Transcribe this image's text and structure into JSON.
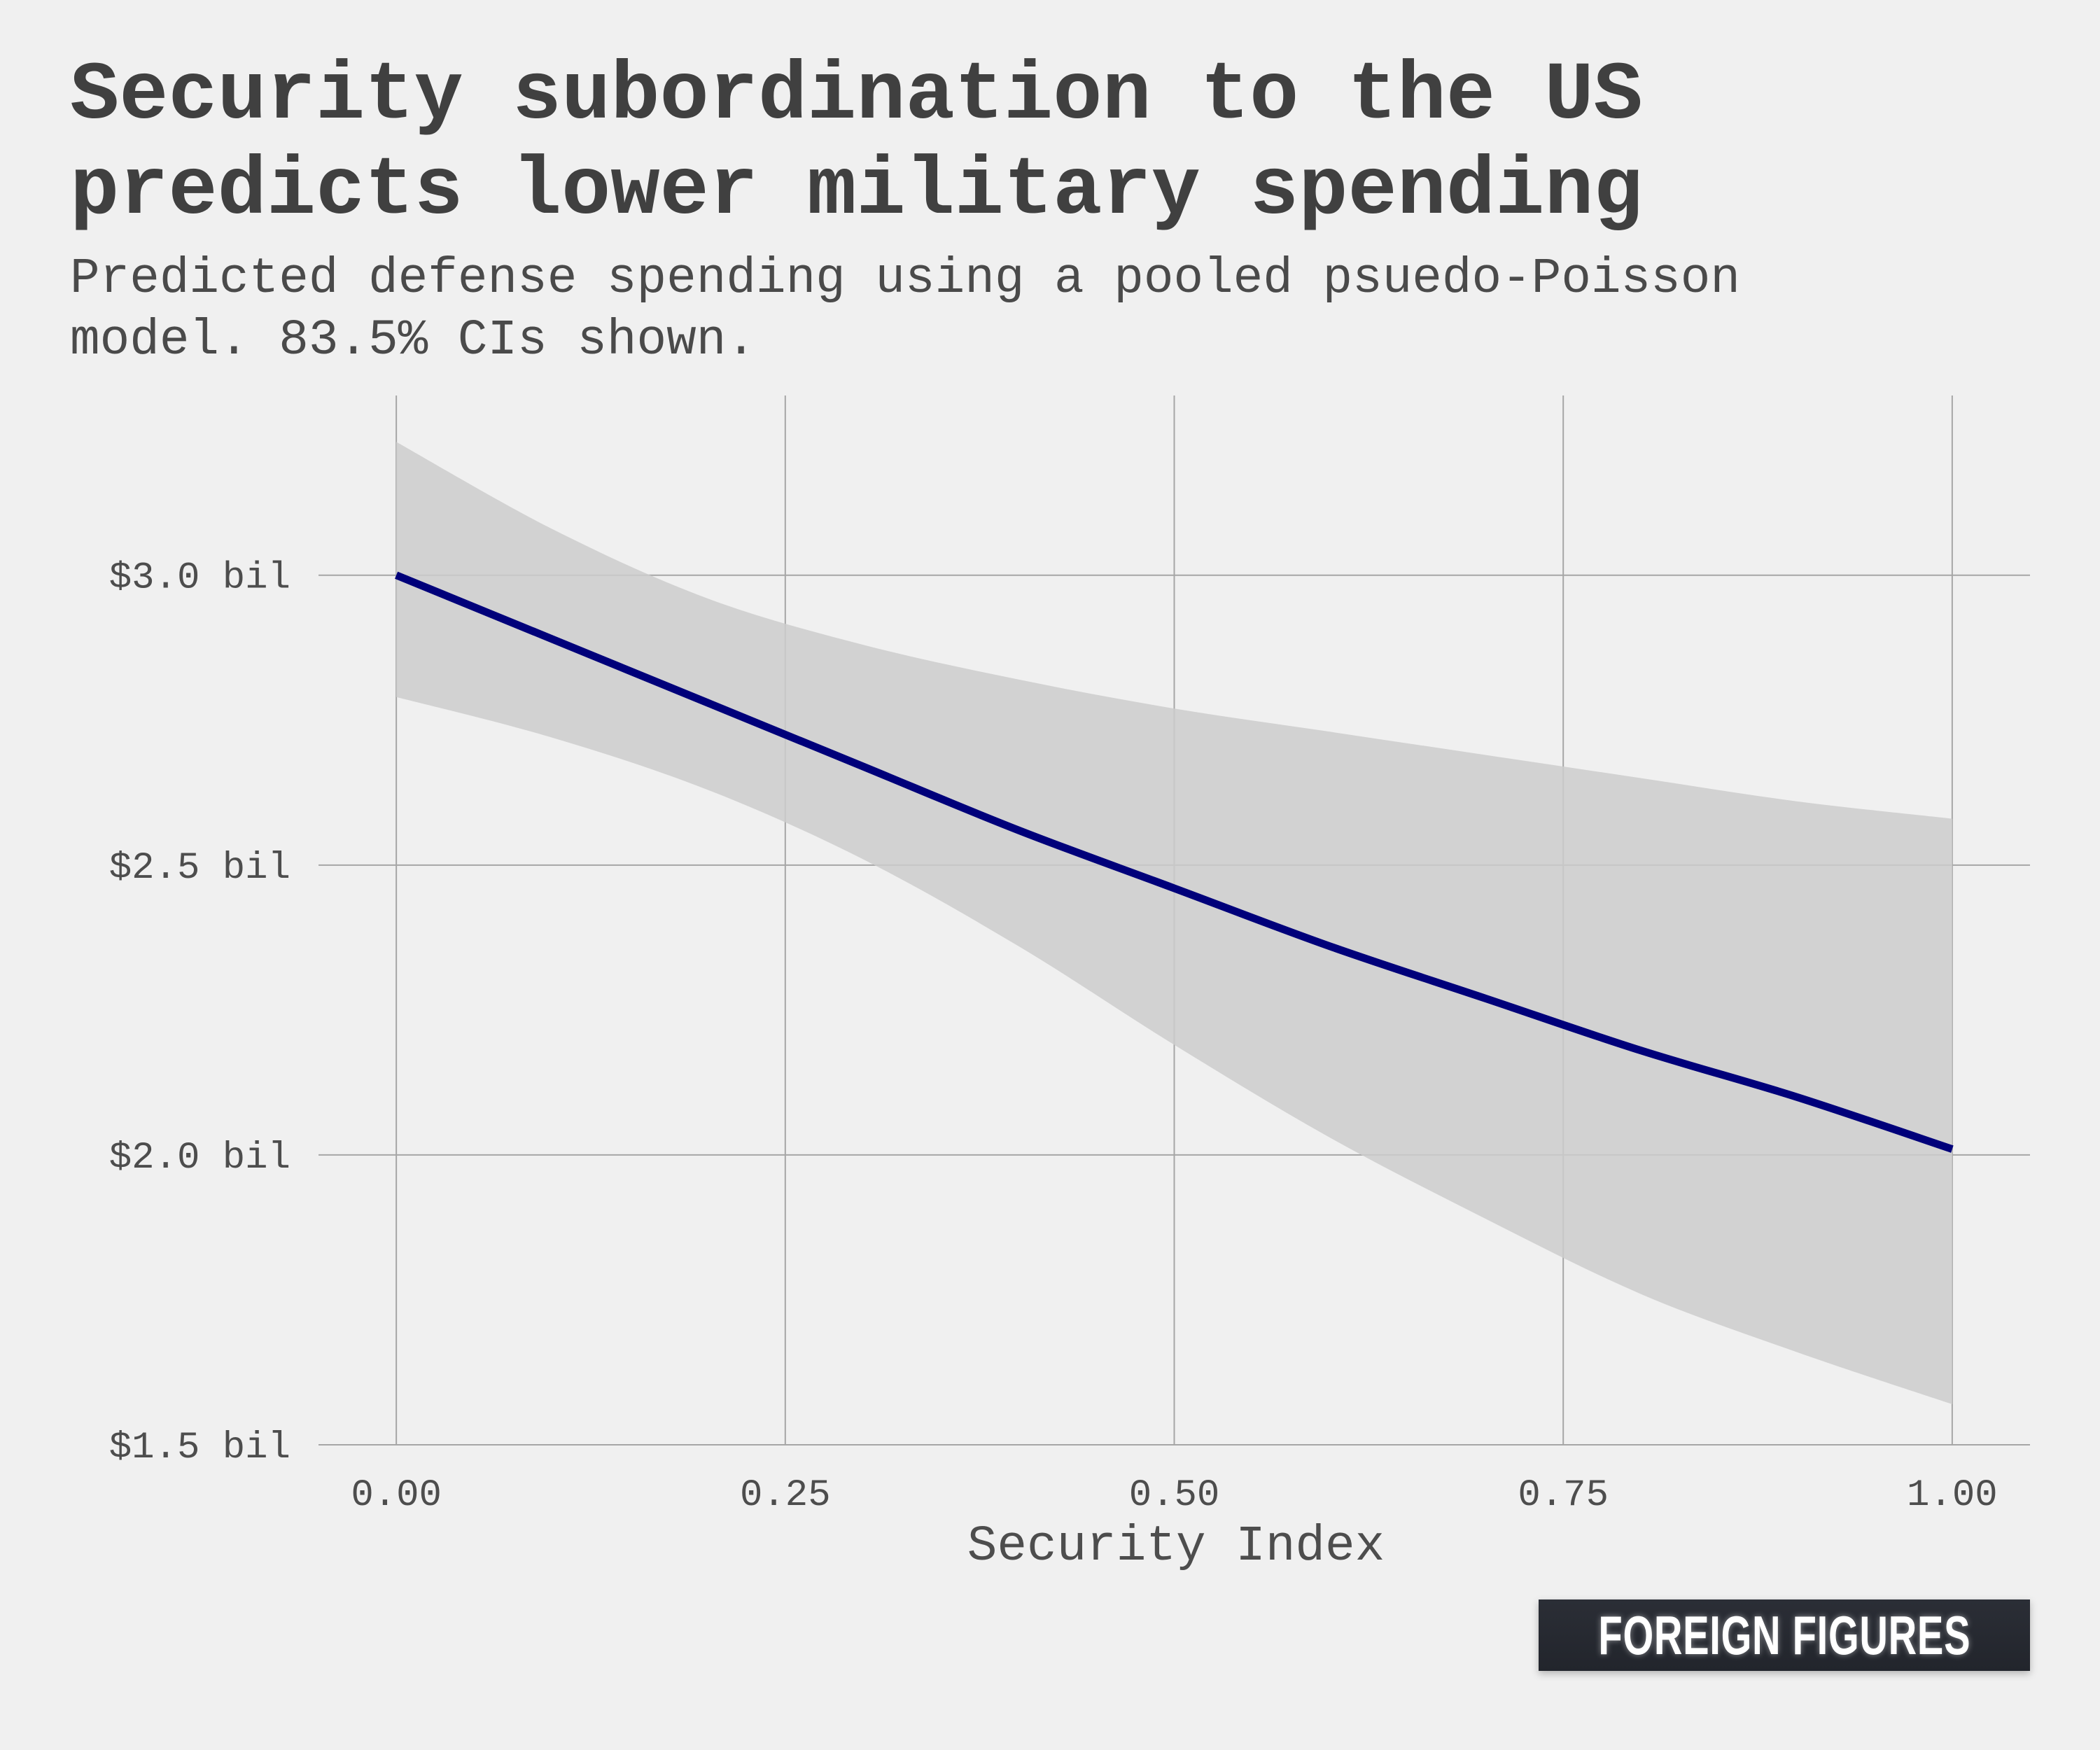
{
  "chart_data": {
    "type": "line",
    "title": "Security subordination to the US predicts lower military spending",
    "subtitle": "Predicted defense spending using a pooled psuedo-Poisson model. 83.5% CIs shown.",
    "xlabel": "Security Index",
    "ylabel": "",
    "xlim": [
      -0.05,
      1.05
    ],
    "ylim": [
      1.5,
      3.31
    ],
    "x_ticks": [
      {
        "value": 0.0,
        "label": "0.00"
      },
      {
        "value": 0.25,
        "label": "0.25"
      },
      {
        "value": 0.5,
        "label": "0.50"
      },
      {
        "value": 0.75,
        "label": "0.75"
      },
      {
        "value": 1.0,
        "label": "1.00"
      }
    ],
    "y_ticks": [
      {
        "value": 1.5,
        "label": "$1.5 bil"
      },
      {
        "value": 2.0,
        "label": "$2.0 bil"
      },
      {
        "value": 2.5,
        "label": "$2.5 bil"
      },
      {
        "value": 3.0,
        "label": "$3.0 bil"
      }
    ],
    "grid": true,
    "legend": "none",
    "series": [
      {
        "x": [
          0.0,
          0.1,
          0.2,
          0.3,
          0.4,
          0.5,
          0.6,
          0.7,
          0.8,
          0.9,
          1.0
        ],
        "values": [
          3.0,
          2.89,
          2.78,
          2.67,
          2.56,
          2.46,
          2.36,
          2.27,
          2.18,
          2.1,
          2.01
        ],
        "upper": [
          3.23,
          3.08,
          2.96,
          2.88,
          2.82,
          2.77,
          2.73,
          2.69,
          2.65,
          2.61,
          2.58
        ],
        "lower": [
          2.79,
          2.72,
          2.63,
          2.51,
          2.36,
          2.19,
          2.03,
          1.89,
          1.76,
          1.66,
          1.57
        ],
        "color": "#00007a",
        "band_color": "#cccccc"
      }
    ]
  },
  "brand": {
    "text": "FOREIGN FIGURES"
  }
}
